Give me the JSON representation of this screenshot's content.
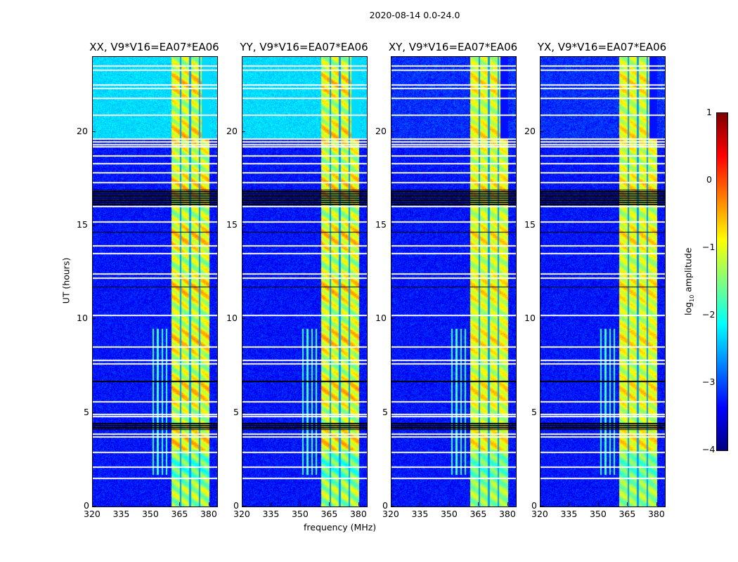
{
  "chart_data": {
    "type": "heatmap",
    "title": "2020-08-14 0.0-24.0",
    "panels": [
      {
        "title": "XX, V9*V16=EA07*EA06",
        "pol": "XX"
      },
      {
        "title": "YY, V9*V16=EA07*EA06",
        "pol": "YY"
      },
      {
        "title": "XY, V9*V16=EA07*EA06",
        "pol": "XY"
      },
      {
        "title": "YX, V9*V16=EA07*EA06",
        "pol": "YX"
      }
    ],
    "xlabel": "frequency (MHz)",
    "ylabel": "UT (hours)",
    "xlim": [
      320,
      384
    ],
    "ylim": [
      0,
      24
    ],
    "xticks": [
      320,
      335,
      350,
      365,
      380
    ],
    "yticks": [
      0,
      5,
      10,
      15,
      20
    ],
    "colorbar": {
      "label_main": "log",
      "label_sub": "10",
      "label_rest": " amplitude",
      "colormap": "jet",
      "range": [
        -4,
        1
      ],
      "ticks": [
        "1",
        "0",
        "−1",
        "−2",
        "−3",
        "−4"
      ]
    },
    "background_level": -3.3,
    "copol_top_level": -2.3,
    "band_mhz": [
      360.4,
      380.0
    ],
    "band_subchannel_gaps_mhz": [
      365.2,
      370.0,
      375.0
    ],
    "band_level": -1.0,
    "rfi_hours": [
      1.7,
      9.5
    ],
    "rfi_mhz": [
      350.5,
      359.5
    ],
    "flagged_white_hours": [
      1.5,
      2.1,
      2.9,
      3.7,
      3.85,
      4.8,
      4.9,
      5.6,
      7.6,
      7.8,
      8.5,
      10.2,
      12.2,
      12.4,
      13.5,
      13.9,
      15.2,
      16.0,
      17.3,
      17.8,
      18.3,
      18.7,
      19.2,
      19.3,
      19.45,
      19.6,
      20.9,
      21.8,
      22.3,
      22.5,
      23.5,
      23.3
    ],
    "flagged_black_hours": [
      [
        16.1,
        16.9
      ],
      [
        4.1,
        4.5
      ],
      [
        6.6,
        6.7
      ],
      [
        11.7,
        11.75
      ],
      [
        14.6,
        14.65
      ]
    ]
  }
}
